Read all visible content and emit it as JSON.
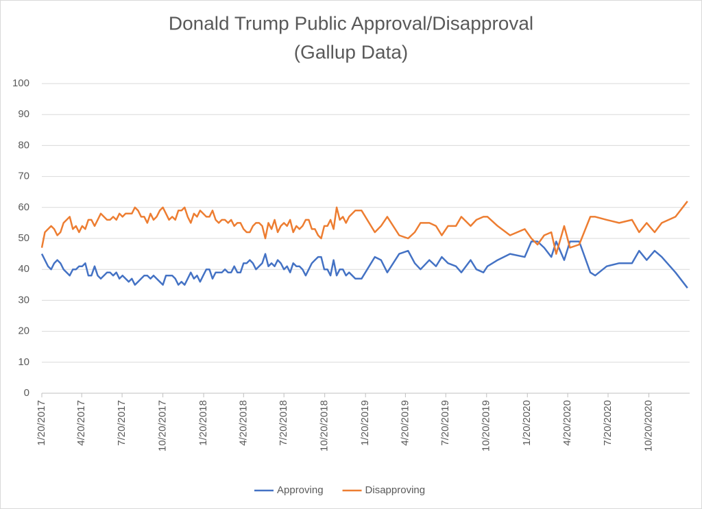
{
  "chart_data": {
    "type": "line",
    "title": "Donald Trump Public Approval/Disapproval",
    "subtitle": "(Gallup Data)",
    "x": [
      "1/20/2017",
      "1/27/2017",
      "2/3/2017",
      "2/10/2017",
      "2/17/2017",
      "2/24/2017",
      "3/3/2017",
      "3/10/2017",
      "3/17/2017",
      "3/24/2017",
      "3/31/2017",
      "4/7/2017",
      "4/14/2017",
      "4/21/2017",
      "4/28/2017",
      "5/5/2017",
      "5/12/2017",
      "5/19/2017",
      "5/26/2017",
      "6/2/2017",
      "6/9/2017",
      "6/16/2017",
      "6/23/2017",
      "6/30/2017",
      "7/7/2017",
      "7/14/2017",
      "7/21/2017",
      "7/28/2017",
      "8/4/2017",
      "8/11/2017",
      "8/18/2017",
      "8/25/2017",
      "9/1/2017",
      "9/8/2017",
      "9/15/2017",
      "9/22/2017",
      "9/29/2017",
      "10/6/2017",
      "10/13/2017",
      "10/20/2017",
      "10/27/2017",
      "11/3/2017",
      "11/10/2017",
      "11/17/2017",
      "11/24/2017",
      "12/1/2017",
      "12/8/2017",
      "12/15/2017",
      "12/22/2017",
      "12/29/2017",
      "1/5/2018",
      "1/12/2018",
      "1/19/2018",
      "1/26/2018",
      "2/2/2018",
      "2/9/2018",
      "2/16/2018",
      "2/23/2018",
      "3/2/2018",
      "3/9/2018",
      "3/16/2018",
      "3/23/2018",
      "3/30/2018",
      "4/6/2018",
      "4/13/2018",
      "4/20/2018",
      "4/27/2018",
      "5/4/2018",
      "5/11/2018",
      "5/18/2018",
      "5/25/2018",
      "6/1/2018",
      "6/8/2018",
      "6/15/2018",
      "6/22/2018",
      "6/29/2018",
      "7/6/2018",
      "7/13/2018",
      "7/20/2018",
      "7/27/2018",
      "8/3/2018",
      "8/10/2018",
      "8/17/2018",
      "8/24/2018",
      "8/31/2018",
      "9/7/2018",
      "9/14/2018",
      "9/21/2018",
      "9/28/2018",
      "10/5/2018",
      "10/12/2018",
      "10/19/2018",
      "10/26/2018",
      "11/2/2018",
      "11/9/2018",
      "11/16/2018",
      "11/23/2018",
      "11/30/2018",
      "12/7/2018",
      "12/14/2018",
      "12/21/2018",
      "12/28/2018",
      "1/4/2019",
      "1/11/2019",
      "2/10/2019",
      "2/24/2019",
      "3/10/2019",
      "4/6/2019",
      "4/26/2019",
      "5/11/2019",
      "5/24/2019",
      "6/13/2019",
      "6/28/2019",
      "7/11/2019",
      "7/25/2019",
      "8/12/2019",
      "8/24/2019",
      "9/14/2019",
      "9/27/2019",
      "10/13/2019",
      "10/22/2019",
      "11/14/2019",
      "12/12/2019",
      "1/14/2020",
      "1/29/2020",
      "2/12/2020",
      "2/27/2020",
      "3/14/2020",
      "3/25/2020",
      "4/12/2020",
      "4/25/2020",
      "5/16/2020",
      "6/10/2020",
      "6/21/2020",
      "7/17/2020",
      "8/14/2020",
      "9/12/2020",
      "9/28/2020",
      "10/15/2020",
      "11/2/2020",
      "11/18/2020",
      "12/19/2020",
      "1/15/2021"
    ],
    "series": [
      {
        "name": "Approving",
        "color": "#4472c4",
        "values": [
          45,
          43,
          41,
          40,
          42,
          43,
          42,
          40,
          39,
          38,
          40,
          40,
          41,
          41,
          42,
          38,
          38,
          41,
          38,
          37,
          38,
          39,
          39,
          38,
          39,
          37,
          38,
          37,
          36,
          37,
          35,
          36,
          37,
          38,
          38,
          37,
          38,
          37,
          36,
          35,
          38,
          38,
          38,
          37,
          35,
          36,
          35,
          37,
          39,
          37,
          38,
          36,
          38,
          40,
          40,
          37,
          39,
          39,
          39,
          40,
          39,
          39,
          41,
          39,
          39,
          42,
          42,
          43,
          42,
          40,
          41,
          42,
          45,
          41,
          42,
          41,
          43,
          42,
          40,
          41,
          39,
          42,
          41,
          41,
          40,
          38,
          40,
          42,
          43,
          44,
          44,
          40,
          40,
          38,
          43,
          38,
          40,
          40,
          38,
          39,
          38,
          37,
          37,
          37,
          44,
          43,
          39,
          45,
          46,
          42,
          40,
          43,
          41,
          44,
          42,
          41,
          39,
          43,
          40,
          39,
          41,
          43,
          45,
          44,
          49,
          49,
          47,
          44,
          49,
          43,
          49,
          49,
          39,
          38,
          41,
          42,
          42,
          46,
          43,
          46,
          44,
          39,
          34
        ]
      },
      {
        "name": "Disapproving",
        "color": "#ed7d31",
        "values": [
          47,
          52,
          53,
          54,
          53,
          51,
          52,
          55,
          56,
          57,
          53,
          54,
          52,
          54,
          53,
          56,
          56,
          54,
          56,
          58,
          57,
          56,
          56,
          57,
          56,
          58,
          57,
          58,
          58,
          58,
          60,
          59,
          57,
          57,
          55,
          58,
          56,
          57,
          59,
          60,
          58,
          56,
          57,
          56,
          59,
          59,
          60,
          57,
          55,
          58,
          57,
          59,
          58,
          57,
          57,
          59,
          56,
          55,
          56,
          56,
          55,
          56,
          54,
          55,
          55,
          53,
          52,
          52,
          54,
          55,
          55,
          54,
          50,
          55,
          53,
          56,
          52,
          54,
          55,
          54,
          56,
          52,
          54,
          53,
          54,
          56,
          56,
          53,
          53,
          51,
          50,
          54,
          54,
          56,
          53,
          60,
          56,
          57,
          55,
          57,
          58,
          59,
          59,
          59,
          52,
          54,
          57,
          51,
          50,
          52,
          55,
          55,
          54,
          51,
          54,
          54,
          57,
          54,
          56,
          57,
          57,
          54,
          51,
          53,
          50,
          48,
          51,
          52,
          45,
          54,
          47,
          48,
          57,
          57,
          56,
          55,
          56,
          52,
          55,
          52,
          55,
          57,
          62
        ]
      }
    ],
    "xlim": [
      "1/20/2017",
      "1/20/2021"
    ],
    "xticks": [
      "1/20/2017",
      "4/20/2017",
      "7/20/2017",
      "10/20/2017",
      "1/20/2018",
      "4/20/2018",
      "7/20/2018",
      "10/20/2018",
      "1/20/2019",
      "4/20/2019",
      "7/20/2019",
      "10/20/2019",
      "1/20/2020",
      "4/20/2020",
      "7/20/2020",
      "10/20/2020"
    ],
    "ylim": [
      0,
      100
    ],
    "yticks": [
      0,
      10,
      20,
      30,
      40,
      50,
      60,
      70,
      80,
      90,
      100
    ],
    "grid": true,
    "legend": "bottom"
  }
}
